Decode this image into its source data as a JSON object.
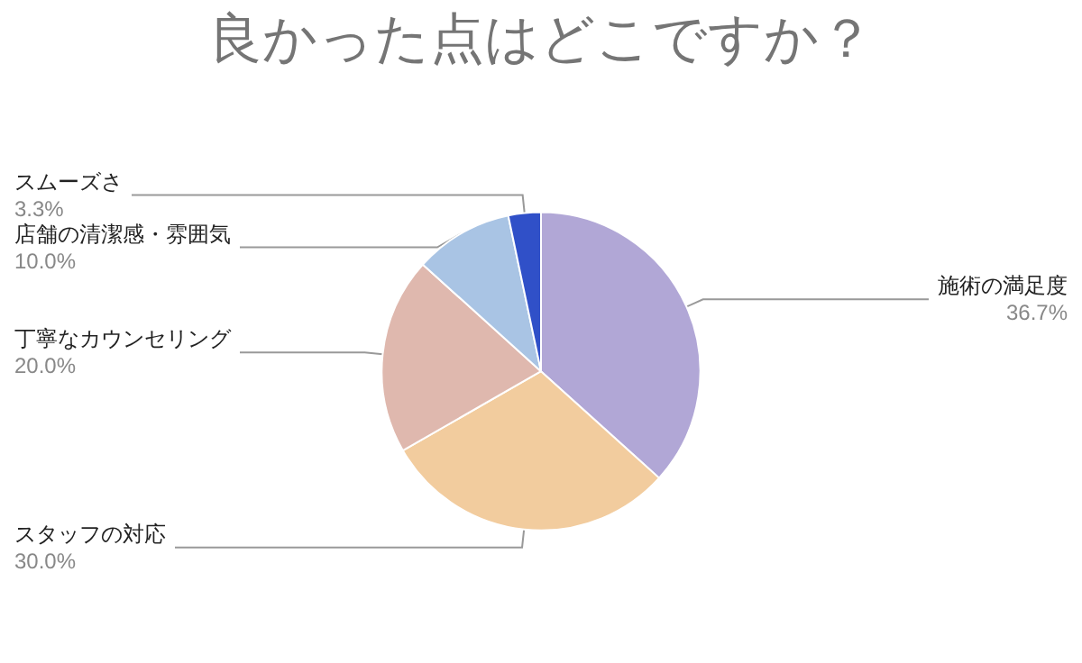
{
  "chart_data": {
    "type": "pie",
    "title": "良かった点はどこですか？",
    "categories": [
      "施術の満足度",
      "スタッフの対応",
      "丁寧なカウンセリング",
      "店舗の清潔感・雰囲気",
      "スムーズさ"
    ],
    "values": [
      36.7,
      30.0,
      20.0,
      10.0,
      3.3
    ],
    "value_labels": [
      "36.7%",
      "30.0%",
      "20.0%",
      "10.0%",
      "3.3%"
    ],
    "colors": [
      "#b1a7d6",
      "#f2cc9e",
      "#dfb8ae",
      "#a9c4e4",
      "#3050c8"
    ],
    "legend": false
  }
}
